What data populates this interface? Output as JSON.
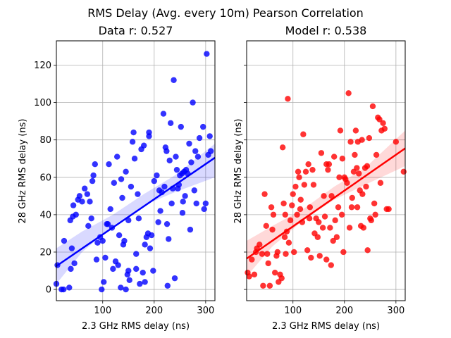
{
  "figure": {
    "suptitle": "RMS Delay (Avg. every 10m) Pearson Correlation"
  },
  "chart_data": [
    {
      "type": "scatter",
      "title": "Data r: 0.527",
      "xlabel": "2.3 GHz RMS delay (ns)",
      "ylabel": "28 GHz RMS delay (ns)",
      "xlim": [
        10,
        318
      ],
      "ylim": [
        -6,
        133
      ],
      "xticks": [
        100,
        200,
        300
      ],
      "yticks": [
        0,
        20,
        40,
        60,
        80,
        100,
        120
      ],
      "grid": true,
      "color": "#0000ff",
      "fit": {
        "x": [
          10,
          318
        ],
        "y": [
          12.5,
          70.5
        ]
      },
      "ci_band": {
        "x": [
          10,
          60,
          120,
          180,
          240,
          318
        ],
        "lower": [
          3,
          20,
          34,
          45,
          52,
          60
        ],
        "upper": [
          22,
          31,
          40,
          51,
          61,
          78
        ]
      },
      "points": [
        [
          10,
          3
        ],
        [
          12,
          13
        ],
        [
          20,
          0
        ],
        [
          24,
          0
        ],
        [
          25,
          26
        ],
        [
          35,
          1
        ],
        [
          37,
          37
        ],
        [
          38,
          11
        ],
        [
          40,
          22
        ],
        [
          42,
          39
        ],
        [
          43,
          45
        ],
        [
          45,
          14
        ],
        [
          48,
          40
        ],
        [
          52,
          48
        ],
        [
          55,
          50
        ],
        [
          60,
          47
        ],
        [
          65,
          54
        ],
        [
          70,
          51
        ],
        [
          72,
          34
        ],
        [
          75,
          47
        ],
        [
          78,
          38
        ],
        [
          80,
          58
        ],
        [
          82,
          61
        ],
        [
          85,
          67
        ],
        [
          88,
          16
        ],
        [
          90,
          25
        ],
        [
          95,
          28
        ],
        [
          98,
          0
        ],
        [
          100,
          26
        ],
        [
          102,
          4
        ],
        [
          105,
          17
        ],
        [
          108,
          35
        ],
        [
          110,
          35
        ],
        [
          112,
          67
        ],
        [
          115,
          43
        ],
        [
          118,
          33
        ],
        [
          120,
          11
        ],
        [
          122,
          57
        ],
        [
          125,
          15
        ],
        [
          128,
          71
        ],
        [
          130,
          13
        ],
        [
          132,
          29
        ],
        [
          135,
          1
        ],
        [
          136,
          59
        ],
        [
          138,
          49
        ],
        [
          140,
          24
        ],
        [
          142,
          26
        ],
        [
          145,
          0
        ],
        [
          145,
          63
        ],
        [
          148,
          8
        ],
        [
          150,
          10
        ],
        [
          150,
          37
        ],
        [
          152,
          5
        ],
        [
          155,
          55
        ],
        [
          158,
          79
        ],
        [
          160,
          84
        ],
        [
          162,
          70
        ],
        [
          165,
          11
        ],
        [
          165,
          19
        ],
        [
          168,
          51
        ],
        [
          170,
          38
        ],
        [
          172,
          3
        ],
        [
          175,
          75
        ],
        [
          178,
          9
        ],
        [
          180,
          77
        ],
        [
          182,
          24
        ],
        [
          182,
          4
        ],
        [
          185,
          28
        ],
        [
          188,
          30
        ],
        [
          190,
          82
        ],
        [
          190,
          84
        ],
        [
          192,
          22
        ],
        [
          195,
          29
        ],
        [
          198,
          10
        ],
        [
          200,
          58
        ],
        [
          205,
          61
        ],
        [
          208,
          36
        ],
        [
          210,
          53
        ],
        [
          212,
          42
        ],
        [
          215,
          52
        ],
        [
          218,
          94
        ],
        [
          220,
          55
        ],
        [
          222,
          76
        ],
        [
          224,
          74
        ],
        [
          225,
          35
        ],
        [
          226,
          2
        ],
        [
          228,
          27
        ],
        [
          230,
          69
        ],
        [
          232,
          89
        ],
        [
          234,
          46
        ],
        [
          236,
          54
        ],
        [
          238,
          112
        ],
        [
          240,
          6
        ],
        [
          242,
          71
        ],
        [
          244,
          64
        ],
        [
          246,
          54
        ],
        [
          248,
          56
        ],
        [
          250,
          61
        ],
        [
          252,
          87
        ],
        [
          254,
          62
        ],
        [
          255,
          41
        ],
        [
          256,
          47
        ],
        [
          258,
          63
        ],
        [
          260,
          50
        ],
        [
          262,
          64
        ],
        [
          265,
          62
        ],
        [
          268,
          78
        ],
        [
          270,
          32
        ],
        [
          272,
          68
        ],
        [
          275,
          100
        ],
        [
          278,
          53
        ],
        [
          280,
          74
        ],
        [
          282,
          46
        ],
        [
          285,
          71
        ],
        [
          288,
          81
        ],
        [
          295,
          87
        ],
        [
          297,
          43
        ],
        [
          300,
          46
        ],
        [
          302,
          126
        ],
        [
          305,
          72
        ],
        [
          308,
          82
        ],
        [
          310,
          74
        ]
      ]
    },
    {
      "type": "scatter",
      "title": "Model r: 0.538",
      "xlabel": "2.3 GHz RMS delay (ns)",
      "ylabel": "28 GHz RMS delay (ns)",
      "xlim": [
        10,
        318
      ],
      "ylim": [
        -6,
        133
      ],
      "xticks": [
        100,
        200,
        300
      ],
      "yticks": [
        0,
        20,
        40,
        60,
        80,
        100,
        120
      ],
      "grid": true,
      "color": "#ff0000",
      "fit": {
        "x": [
          10,
          318
        ],
        "y": [
          16.5,
          75.5
        ]
      },
      "ci_band": {
        "x": [
          10,
          60,
          120,
          180,
          240,
          318
        ],
        "lower": [
          7,
          23,
          37,
          48,
          56,
          66
        ],
        "upper": [
          26,
          34,
          43,
          55,
          65,
          85
        ]
      },
      "points": [
        [
          12,
          9
        ],
        [
          15,
          7
        ],
        [
          20,
          16
        ],
        [
          25,
          8
        ],
        [
          28,
          20
        ],
        [
          30,
          22
        ],
        [
          35,
          24
        ],
        [
          40,
          19
        ],
        [
          42,
          2
        ],
        [
          45,
          51
        ],
        [
          48,
          34
        ],
        [
          50,
          19
        ],
        [
          52,
          14
        ],
        [
          55,
          2
        ],
        [
          58,
          44
        ],
        [
          60,
          32
        ],
        [
          62,
          40
        ],
        [
          65,
          9
        ],
        [
          68,
          18
        ],
        [
          70,
          20
        ],
        [
          72,
          4
        ],
        [
          75,
          8
        ],
        [
          78,
          6
        ],
        [
          80,
          76
        ],
        [
          82,
          46
        ],
        [
          84,
          28
        ],
        [
          85,
          40
        ],
        [
          86,
          19
        ],
        [
          88,
          31
        ],
        [
          90,
          102
        ],
        [
          92,
          25
        ],
        [
          95,
          37
        ],
        [
          98,
          45
        ],
        [
          100,
          51
        ],
        [
          102,
          20
        ],
        [
          105,
          55
        ],
        [
          108,
          40
        ],
        [
          110,
          63
        ],
        [
          112,
          60
        ],
        [
          114,
          43
        ],
        [
          115,
          48
        ],
        [
          118,
          36
        ],
        [
          120,
          83
        ],
        [
          122,
          56
        ],
        [
          125,
          63
        ],
        [
          128,
          21
        ],
        [
          130,
          67
        ],
        [
          132,
          38
        ],
        [
          133,
          44
        ],
        [
          135,
          17
        ],
        [
          138,
          64
        ],
        [
          140,
          56
        ],
        [
          142,
          30
        ],
        [
          145,
          38
        ],
        [
          148,
          28
        ],
        [
          150,
          36
        ],
        [
          152,
          18
        ],
        [
          155,
          73
        ],
        [
          158,
          33
        ],
        [
          160,
          50
        ],
        [
          162,
          39
        ],
        [
          165,
          16
        ],
        [
          165,
          67
        ],
        [
          168,
          64
        ],
        [
          170,
          67
        ],
        [
          172,
          33
        ],
        [
          174,
          13
        ],
        [
          175,
          50
        ],
        [
          178,
          26
        ],
        [
          180,
          71
        ],
        [
          182,
          37
        ],
        [
          185,
          28
        ],
        [
          188,
          44
        ],
        [
          190,
          60
        ],
        [
          192,
          85
        ],
        [
          195,
          40
        ],
        [
          196,
          70
        ],
        [
          198,
          20
        ],
        [
          200,
          60
        ],
        [
          202,
          59
        ],
        [
          205,
          57
        ],
        [
          208,
          105
        ],
        [
          210,
          33
        ],
        [
          212,
          79
        ],
        [
          214,
          44
        ],
        [
          215,
          49
        ],
        [
          218,
          63
        ],
        [
          220,
          72
        ],
        [
          222,
          85
        ],
        [
          224,
          65
        ],
        [
          225,
          44
        ],
        [
          226,
          79
        ],
        [
          228,
          62
        ],
        [
          230,
          53
        ],
        [
          232,
          34
        ],
        [
          234,
          80
        ],
        [
          235,
          51
        ],
        [
          237,
          33
        ],
        [
          240,
          65
        ],
        [
          242,
          55
        ],
        [
          244,
          66
        ],
        [
          245,
          21
        ],
        [
          248,
          81
        ],
        [
          250,
          38
        ],
        [
          252,
          37
        ],
        [
          255,
          98
        ],
        [
          258,
          46
        ],
        [
          260,
          40
        ],
        [
          262,
          72
        ],
        [
          265,
          92
        ],
        [
          268,
          91
        ],
        [
          270,
          57
        ],
        [
          272,
          85
        ],
        [
          275,
          89
        ],
        [
          278,
          86
        ],
        [
          282,
          43
        ],
        [
          286,
          43
        ],
        [
          300,
          79
        ],
        [
          315,
          63
        ]
      ]
    }
  ]
}
